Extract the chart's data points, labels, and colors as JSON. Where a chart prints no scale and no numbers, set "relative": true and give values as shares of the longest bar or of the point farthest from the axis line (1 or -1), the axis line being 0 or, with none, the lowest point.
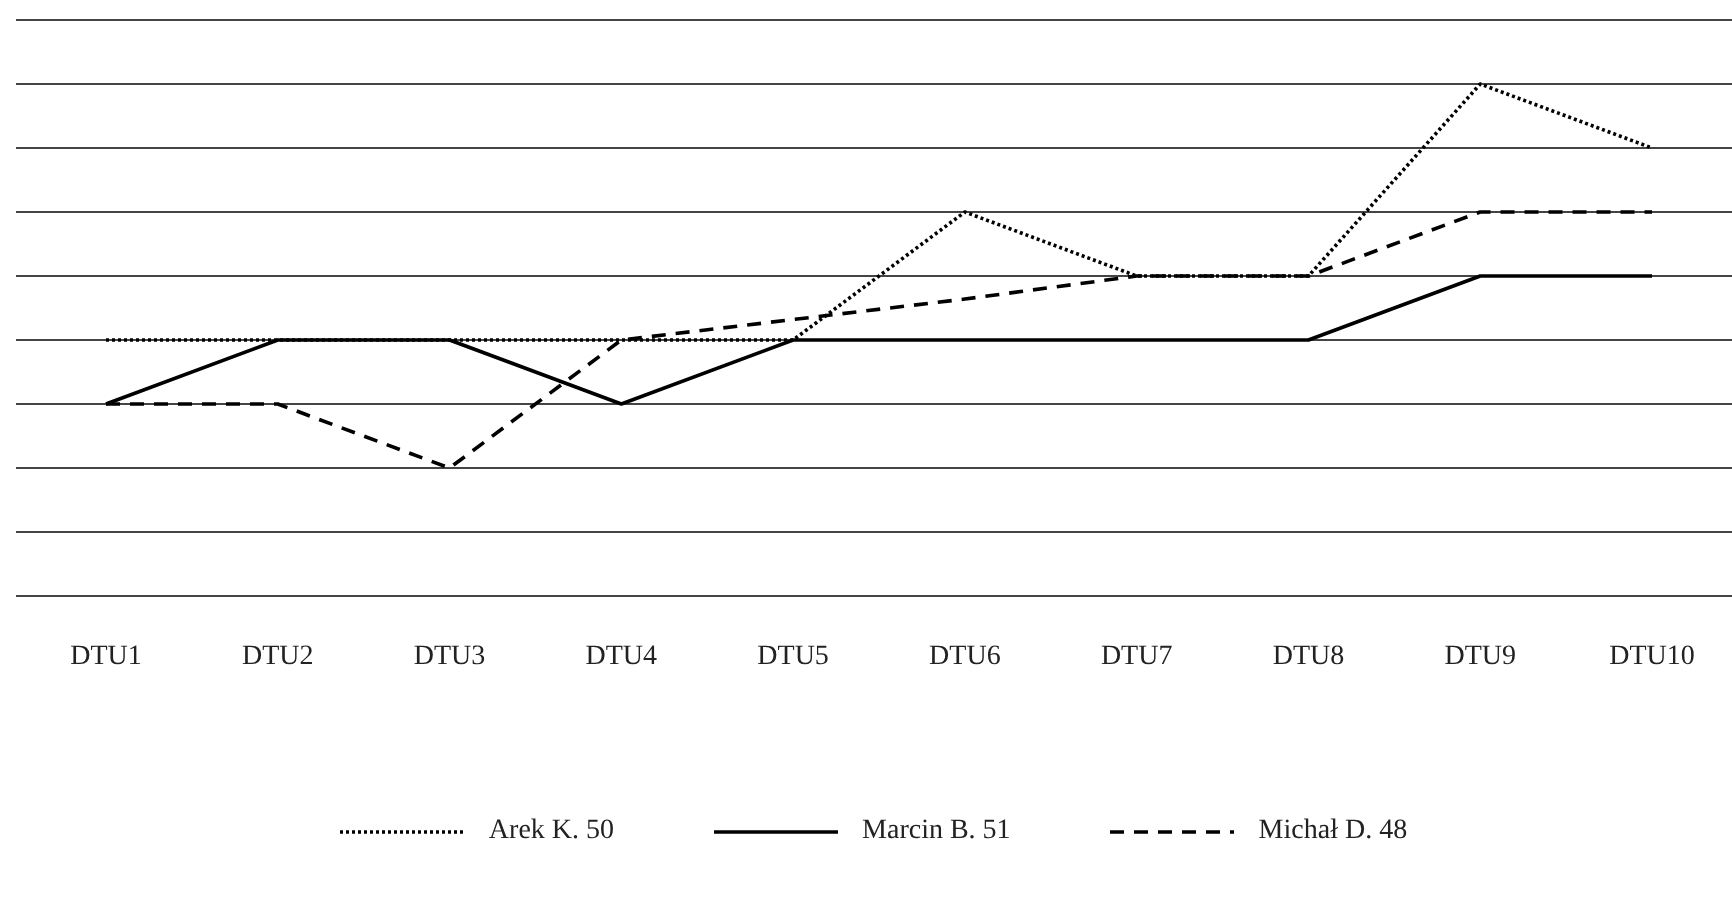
{
  "chart_data": {
    "type": "line",
    "relative": true,
    "grid": "y",
    "legend": "bottom",
    "marker": "none",
    "categories": [
      "DTU1",
      "DTU2",
      "DTU3",
      "DTU4",
      "DTU5",
      "DTU6",
      "DTU7",
      "DTU8",
      "DTU9",
      "DTU10"
    ],
    "series": [
      {
        "name": "Arek K. 50",
        "color": "#000000",
        "line_style": "dotted",
        "values": [
          0.5,
          0.5,
          0.5,
          0.5,
          0.5,
          0.75,
          0.625,
          0.625,
          1,
          0.875
        ]
      },
      {
        "name": "Marcin B. 51",
        "color": "#000000",
        "line_style": "solid",
        "values": [
          0.375,
          0.5,
          0.5,
          0.375,
          0.5,
          0.5,
          0.5,
          0.5,
          0.625,
          0.625
        ]
      },
      {
        "name": "Michał D. 48",
        "color": "#000000",
        "line_style": "dashed",
        "values": [
          0.375,
          0.375,
          0.25,
          0.5,
          0.54,
          0.58,
          0.625,
          0.625,
          0.75,
          0.75
        ]
      }
    ]
  }
}
